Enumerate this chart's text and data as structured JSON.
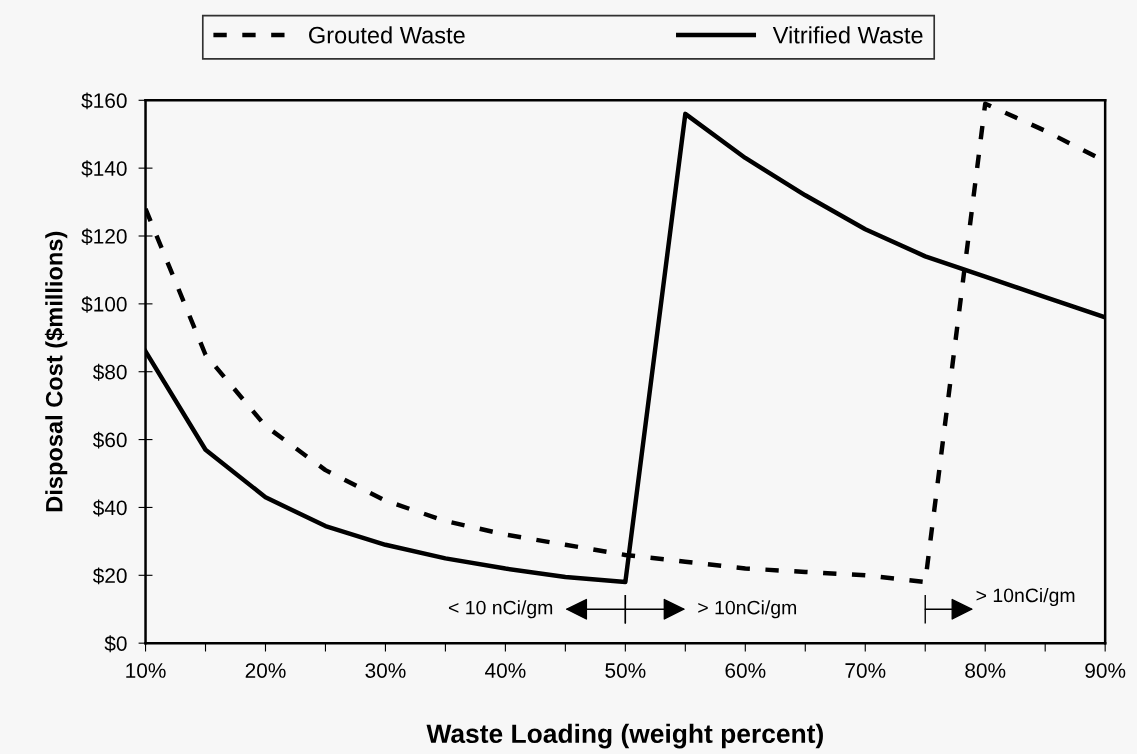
{
  "chart_data": {
    "type": "line",
    "xlabel": "Waste Loading (weight percent)",
    "ylabel": "Disposal Cost ($millions)",
    "x": [
      10,
      15,
      20,
      25,
      30,
      35,
      40,
      45,
      50,
      55,
      60,
      65,
      70,
      75,
      80,
      85,
      90
    ],
    "series": [
      {
        "name": "Grouted Waste",
        "color": "#000000",
        "line_style": "dashed",
        "values": [
          128,
          85,
          64,
          51,
          42,
          36,
          32,
          29,
          26,
          24,
          22,
          21,
          20,
          18,
          159,
          151,
          142
        ]
      },
      {
        "name": "Vitrified Waste",
        "color": "#000000",
        "line_style": "solid",
        "values": [
          86,
          57,
          43,
          34.5,
          29,
          25,
          22,
          19.5,
          18,
          156,
          143,
          132,
          122,
          114,
          108,
          102,
          96
        ]
      }
    ],
    "xlim": [
      10,
      90
    ],
    "xticks": [
      {
        "value": 10,
        "label": "10%"
      },
      {
        "value": 15,
        "label": null
      },
      {
        "value": 20,
        "label": "20%"
      },
      {
        "value": 25,
        "label": null
      },
      {
        "value": 30,
        "label": "30%"
      },
      {
        "value": 35,
        "label": null
      },
      {
        "value": 40,
        "label": "40%"
      },
      {
        "value": 45,
        "label": null
      },
      {
        "value": 50,
        "label": "50%"
      },
      {
        "value": 55,
        "label": null
      },
      {
        "value": 60,
        "label": "60%"
      },
      {
        "value": 65,
        "label": null
      },
      {
        "value": 70,
        "label": "70%"
      },
      {
        "value": 75,
        "label": null
      },
      {
        "value": 80,
        "label": "80%"
      },
      {
        "value": 85,
        "label": null
      },
      {
        "value": 90,
        "label": "90%"
      }
    ],
    "ylim": [
      0,
      160
    ],
    "yticks": [
      {
        "value": 0,
        "label": "$0"
      },
      {
        "value": 20,
        "label": "$20"
      },
      {
        "value": 40,
        "label": "$40"
      },
      {
        "value": 60,
        "label": "$60"
      },
      {
        "value": 80,
        "label": "$80"
      },
      {
        "value": 100,
        "label": "$100"
      },
      {
        "value": 120,
        "label": "$120"
      },
      {
        "value": 140,
        "label": "$140"
      },
      {
        "value": 160,
        "label": "$160"
      }
    ],
    "annotations": [
      "< 10 nCi/gm",
      "> 10nCi/gm",
      "> 10nCi/gm"
    ],
    "grid": false,
    "legend": "top",
    "marker": "none"
  }
}
